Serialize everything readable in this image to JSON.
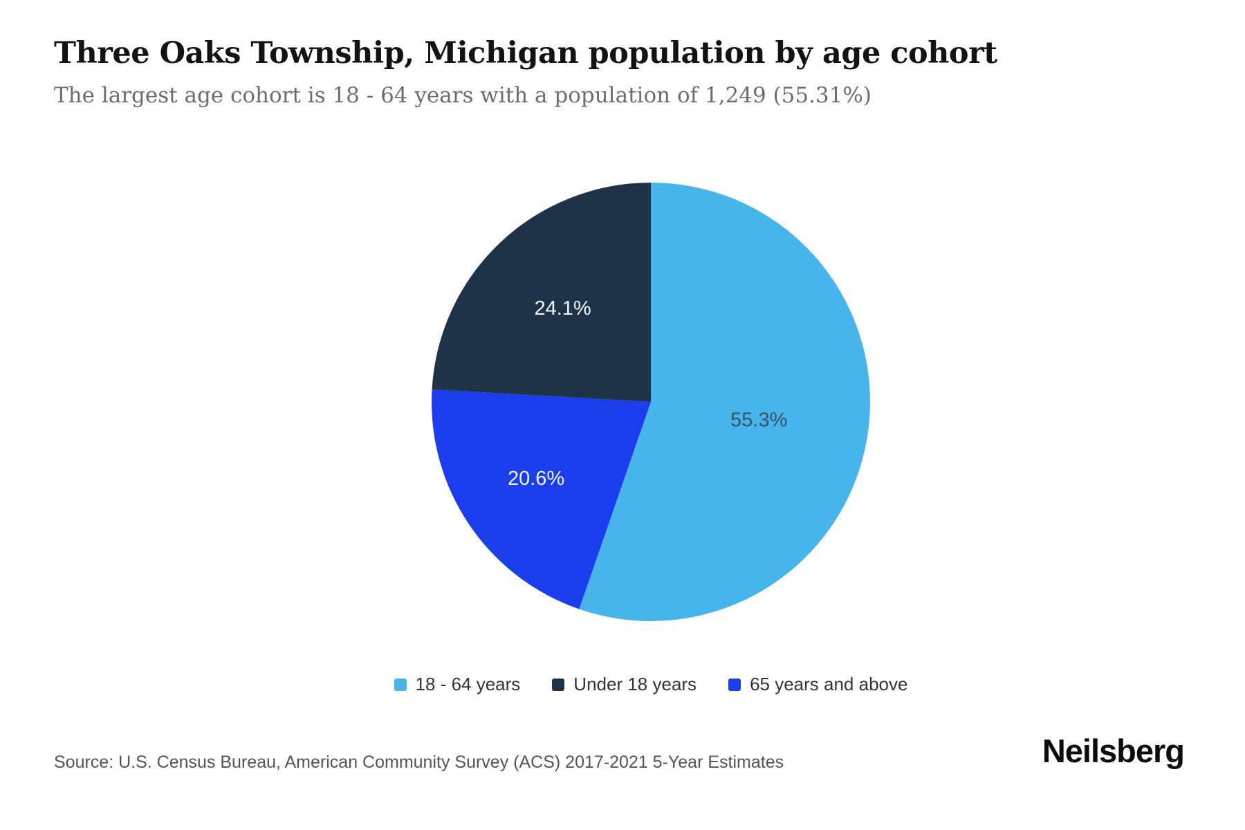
{
  "header": {
    "title": "Three Oaks Township, Michigan population by age cohort",
    "subtitle": "The largest age cohort is 18 - 64 years with a population of 1,249 (55.31%)"
  },
  "chart_data": {
    "type": "pie",
    "title": "Three Oaks Township, Michigan population by age cohort",
    "slices": [
      {
        "label": "18 - 64 years",
        "value": 55.3,
        "display": "55.3%",
        "color": "#47b4ec",
        "label_color": "#35536a"
      },
      {
        "label": "Under 18 years",
        "value": 24.1,
        "display": "24.1%",
        "color": "#1e3348",
        "label_color": "#f2f6fa"
      },
      {
        "label": "65 years and above",
        "value": 20.6,
        "display": "20.6%",
        "color": "#1a3eec",
        "label_color": "#f2f6fa"
      }
    ],
    "clockwise_order": [
      0,
      2,
      1
    ],
    "start_angle": "12 o'clock",
    "legend_position": "bottom",
    "largest_cohort": {
      "label": "18 - 64 years",
      "population": "1,249",
      "share": "55.31%"
    }
  },
  "footer": {
    "source": "Source: U.S. Census Bureau, American Community Survey (ACS) 2017-2021 5-Year Estimates",
    "brand": "Neilsberg"
  }
}
